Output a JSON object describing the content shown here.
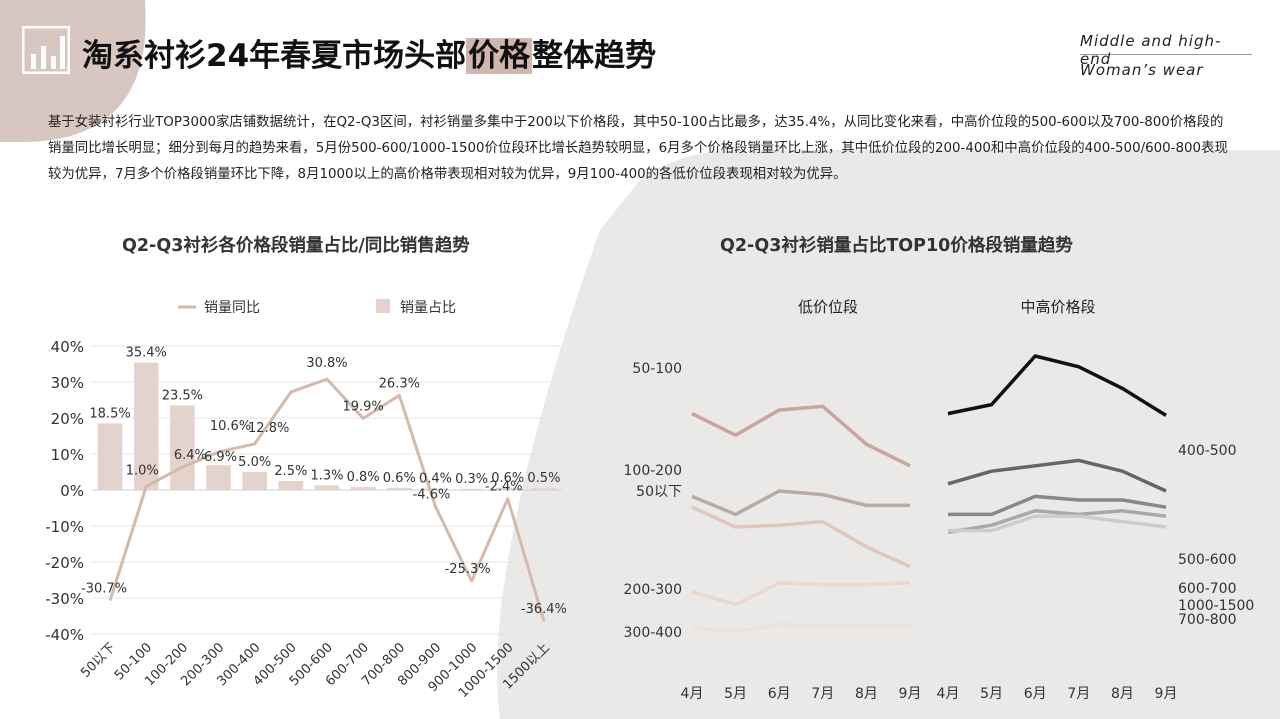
{
  "header": {
    "title_part1": "淘系衬衫24年春夏市场头部",
    "title_highlight": "价格",
    "title_part2": "整体趋势",
    "brand_line1": "Middle and high-end",
    "brand_line2": "Woman’s wear",
    "icon": "bar-chart-icon"
  },
  "description": "基于女装衬衫行业TOP3000家店铺数据统计，在Q2-Q3区间，衬衫销量多集中于200以下价格段，其中50-100占比最多，达35.4%，从同比变化来看，中高价位段的500-600以及700-800价格段的销量同比增长明显；细分到每月的趋势来看，5月份500-600/1000-1500价位段环比增长趋势较明显，6月多个价格段销量环比上涨，其中低价位段的200-400和中高价位段的400-500/600-800表现较为优异，7月多个价格段销量环比下降，8月1000以上的高价格带表现相对较为优异，9月100-400的各低价位段表现相对较为优异。",
  "colors": {
    "accent": "#cfb7b0",
    "bar": "#e3d3cc",
    "yoy_line": "#d4b9ad"
  },
  "chart_data": [
    {
      "type": "bar",
      "title": "Q2-Q3衬衫各价格段销量占比/同比销售趋势",
      "legend": [
        "销量同比",
        "销量占比"
      ],
      "legend_position": "top",
      "categories": [
        "50以下",
        "50-100",
        "100-200",
        "200-300",
        "300-400",
        "400-500",
        "500-600",
        "600-700",
        "700-800",
        "800-900",
        "900-1000",
        "1000-1500",
        "1500以上"
      ],
      "series": [
        {
          "name": "销量占比",
          "type": "bar",
          "values": [
            18.5,
            35.4,
            23.5,
            6.9,
            5.0,
            2.5,
            1.3,
            0.8,
            0.6,
            0.4,
            0.3,
            0.6,
            0.5
          ],
          "labels": [
            "18.5%",
            "35.4%",
            "23.5%",
            "6.9%",
            "5.0%",
            "2.5%",
            "1.3%",
            "0.8%",
            "0.6%",
            "0.4%",
            "0.3%",
            "0.6%",
            "0.5%"
          ]
        },
        {
          "name": "销量同比",
          "type": "line",
          "values": [
            -30.7,
            1.0,
            6.4,
            10.6,
            12.8,
            27.2,
            30.8,
            19.9,
            26.3,
            -4.6,
            -25.3,
            -2.4,
            -36.4
          ],
          "labels": [
            "-30.7%",
            "1.0%",
            "6.4%",
            "10.6%",
            "12.8%",
            "",
            "30.8%",
            "19.9%",
            "26.3%",
            "-4.6%",
            "-25.3%",
            "-2.4%",
            "-36.4%"
          ]
        }
      ],
      "ylim": [
        -40,
        40
      ],
      "yticks": [
        "-40%",
        "-30%",
        "-20%",
        "-10%",
        "0%",
        "10%",
        "20%",
        "30%",
        "40%"
      ],
      "grid": true
    },
    {
      "type": "line",
      "title": "Q2-Q3衬衫销量占比TOP10价格段销量趋势",
      "x": [
        "4月",
        "5月",
        "6月",
        "7月",
        "8月",
        "9月"
      ],
      "panels": [
        {
          "name": "低价位段",
          "series": [
            {
              "name": "50-100",
              "color": "#c9a59d",
              "values": [
                88,
                76,
                90,
                92,
                71,
                59
              ]
            },
            {
              "name": "100-200",
              "color": "#b8aba6",
              "values": [
                42,
                32,
                45,
                43,
                37,
                37
              ]
            },
            {
              "name": "50以下",
              "color": "#e0c7bd",
              "values": [
                36,
                25,
                26,
                28,
                14,
                3
              ]
            },
            {
              "name": "200-300",
              "color": "#ebd7cb",
              "values": [
                -11,
                -18,
                -6,
                -7,
                -7,
                -6
              ]
            },
            {
              "name": "300-400",
              "color": "#ebe2de",
              "values": [
                -31,
                -33,
                -29,
                -30,
                -30,
                -30
              ]
            }
          ]
        },
        {
          "name": "中高价格段",
          "series": [
            {
              "name": "400-500",
              "color": "#111111",
              "values": [
                88,
                93,
                120,
                114,
                102,
                87
              ]
            },
            {
              "name": "500-600",
              "color": "#666666",
              "values": [
                49,
                56,
                59,
                62,
                56,
                45
              ]
            },
            {
              "name": "600-700",
              "color": "#888888",
              "values": [
                32,
                32,
                42,
                40,
                40,
                36
              ]
            },
            {
              "name": "1000-1500",
              "color": "#a8a8a8",
              "values": [
                22,
                26,
                34,
                32,
                34,
                31
              ]
            },
            {
              "name": "700-800",
              "color": "#cccccc",
              "values": [
                23,
                23,
                31,
                31,
                28,
                25
              ]
            }
          ]
        }
      ]
    }
  ]
}
